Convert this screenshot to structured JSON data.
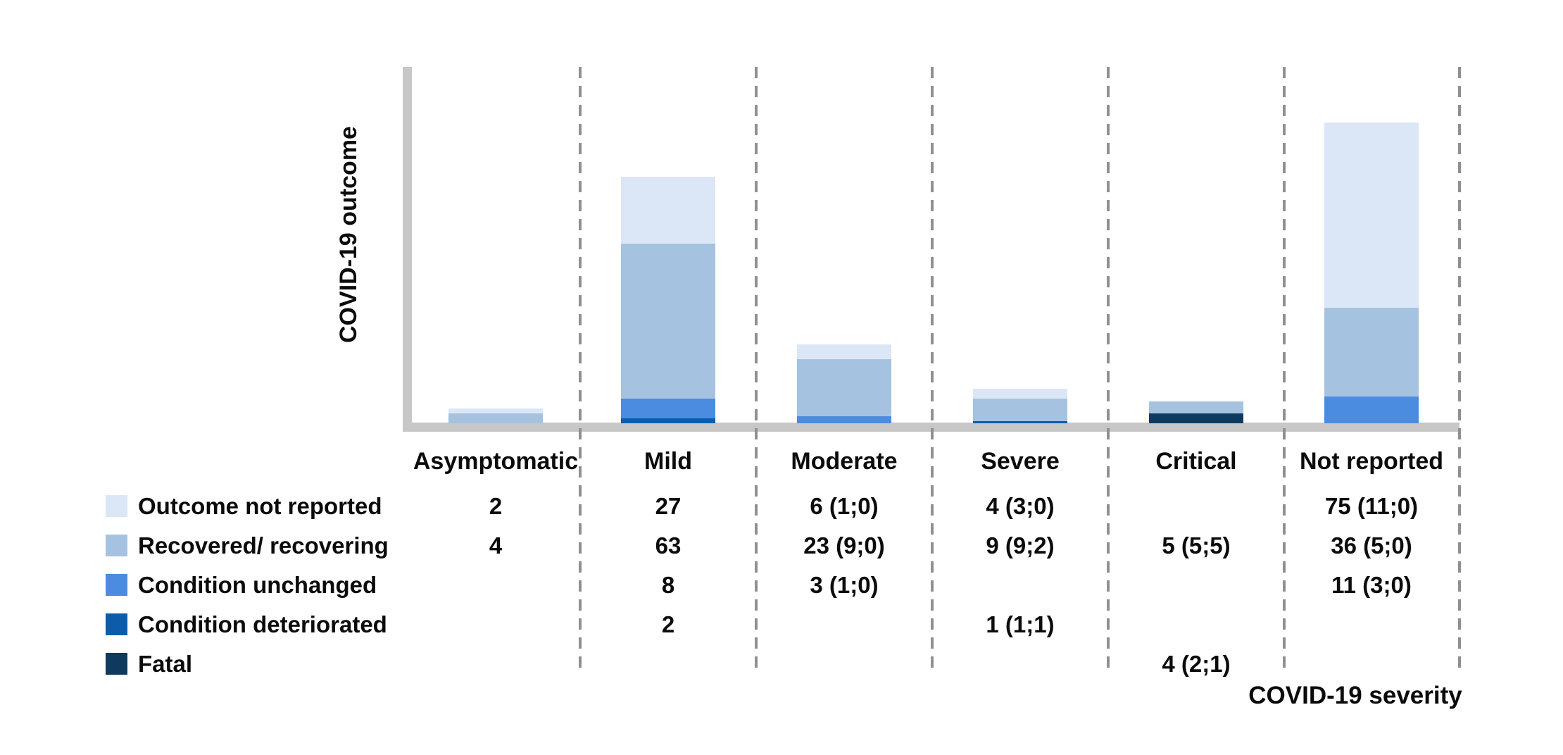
{
  "chart_data": {
    "type": "bar",
    "stacked": true,
    "title": "",
    "xlabel": "COVID-19 severity",
    "ylabel": "COVID-19 outcome",
    "categories": [
      "Asymptomatic",
      "Mild",
      "Moderate",
      "Severe",
      "Critical",
      "Not reported"
    ],
    "series": [
      {
        "name": "Outcome not reported",
        "color": "#dbe7f6",
        "values": [
          2,
          27,
          6,
          4,
          0,
          75
        ],
        "cell_labels": [
          "2",
          "27",
          "6 (1;0)",
          "4 (3;0)",
          "",
          "75 (11;0)"
        ]
      },
      {
        "name": "Recovered/ recovering",
        "color": "#a5c3e1",
        "values": [
          4,
          63,
          23,
          9,
          5,
          36
        ],
        "cell_labels": [
          "4",
          "63",
          "23 (9;0)",
          "9 (9;2)",
          "5 (5;5)",
          "36 (5;0)"
        ]
      },
      {
        "name": "Condition unchanged",
        "color": "#4c8ce0",
        "values": [
          0,
          8,
          3,
          0,
          0,
          11
        ],
        "cell_labels": [
          "",
          "8",
          "3 (1;0)",
          "",
          "",
          "11 (3;0)"
        ]
      },
      {
        "name": "Condition deteriorated",
        "color": "#0d5cab",
        "values": [
          0,
          2,
          0,
          1,
          0,
          0
        ],
        "cell_labels": [
          "",
          "2",
          "",
          "1 (1;1)",
          "",
          ""
        ]
      },
      {
        "name": "Fatal",
        "color": "#0e3a5f",
        "values": [
          0,
          0,
          0,
          0,
          4,
          0
        ],
        "cell_labels": [
          "",
          "",
          "",
          "",
          "4 (2;1)",
          ""
        ]
      }
    ],
    "stack_order_bottom_to_top": [
      "Fatal",
      "Condition deteriorated",
      "Condition unchanged",
      "Recovered/ recovering",
      "Outcome not reported"
    ],
    "category_totals": [
      6,
      100,
      32,
      14,
      9,
      122
    ],
    "axis_color": "#c7c7c7",
    "grid": "vertical-dashed-separators",
    "grid_color": "#909090",
    "legend_position": "bottom-left",
    "y_ticks": "none"
  }
}
